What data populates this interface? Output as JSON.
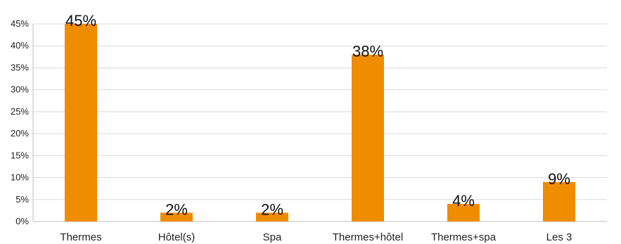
{
  "chart_data": {
    "type": "bar",
    "categories": [
      "Thermes",
      "Hôtel(s)",
      "Spa",
      "Thermes+hôtel",
      "Thermes+spa",
      "Les 3"
    ],
    "values": [
      45,
      2,
      2,
      38,
      4,
      9
    ],
    "value_labels": [
      "45%",
      "2%",
      "2%",
      "38%",
      "4%",
      "9%"
    ],
    "yticks": [
      0,
      5,
      10,
      15,
      20,
      25,
      30,
      35,
      40,
      45
    ],
    "ytick_labels": [
      "0%",
      "5%",
      "10%",
      "15%",
      "20%",
      "25%",
      "30%",
      "35%",
      "40%",
      "45%"
    ],
    "ylim": [
      0,
      45
    ],
    "grid": true,
    "legend": "none",
    "colors": {
      "bar": "#F08C00",
      "grid": "#D9D9D9",
      "axis": "#BFBFBF"
    }
  }
}
